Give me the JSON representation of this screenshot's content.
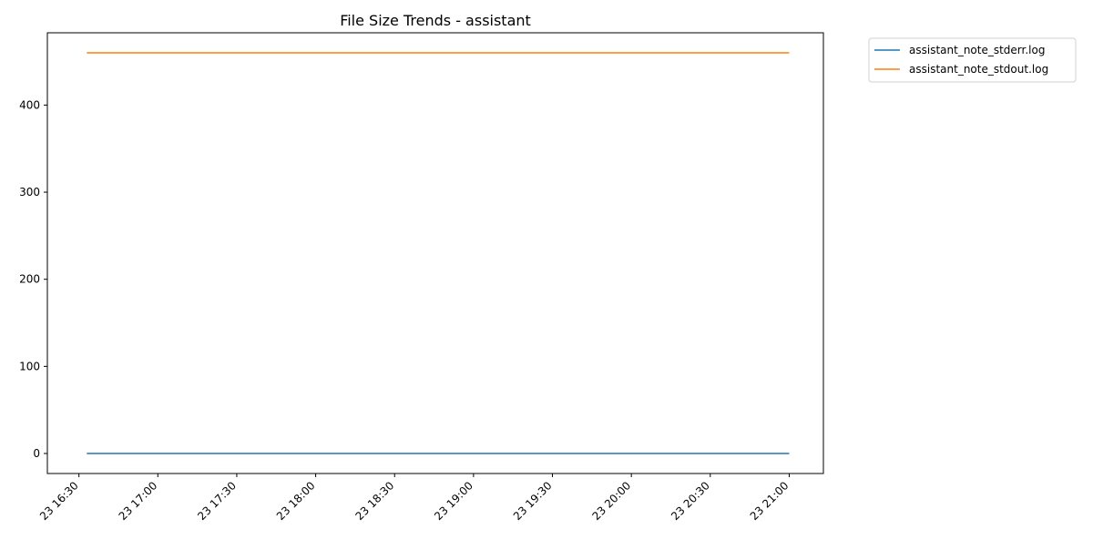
{
  "chart_data": {
    "type": "line",
    "title": "File Size Trends - assistant",
    "xlabel": "",
    "ylabel": "",
    "x_axis": {
      "kind": "time",
      "range": [
        "2024-01-23T16:18",
        "2024-01-23T21:13"
      ],
      "ticks": [
        "16:30",
        "17:00",
        "17:30",
        "18:00",
        "18:30",
        "19:00",
        "19:30",
        "20:00",
        "20:30",
        "21:00"
      ],
      "tick_labels": [
        "23 16:30",
        "23 17:00",
        "23 17:30",
        "23 18:00",
        "23 18:30",
        "23 19:00",
        "23 19:30",
        "23 20:00",
        "23 20:30",
        "23 21:00"
      ],
      "tick_label_rotation": 45
    },
    "y_axis": {
      "ylim": [
        -23,
        483
      ],
      "ticks": [
        0,
        100,
        200,
        300,
        400
      ],
      "tick_labels": [
        "0",
        "100",
        "200",
        "300",
        "400"
      ]
    },
    "grid": false,
    "legend": {
      "placement": "outside-top-right"
    },
    "series": [
      {
        "name": "assistant_note_stderr.log",
        "color": "#1f77b4",
        "x": [
          "16:33",
          "21:00"
        ],
        "y": [
          0,
          0
        ]
      },
      {
        "name": "assistant_note_stdout.log",
        "color": "#ff7f0e",
        "x": [
          "16:33",
          "21:00"
        ],
        "y": [
          460,
          460
        ]
      }
    ]
  }
}
